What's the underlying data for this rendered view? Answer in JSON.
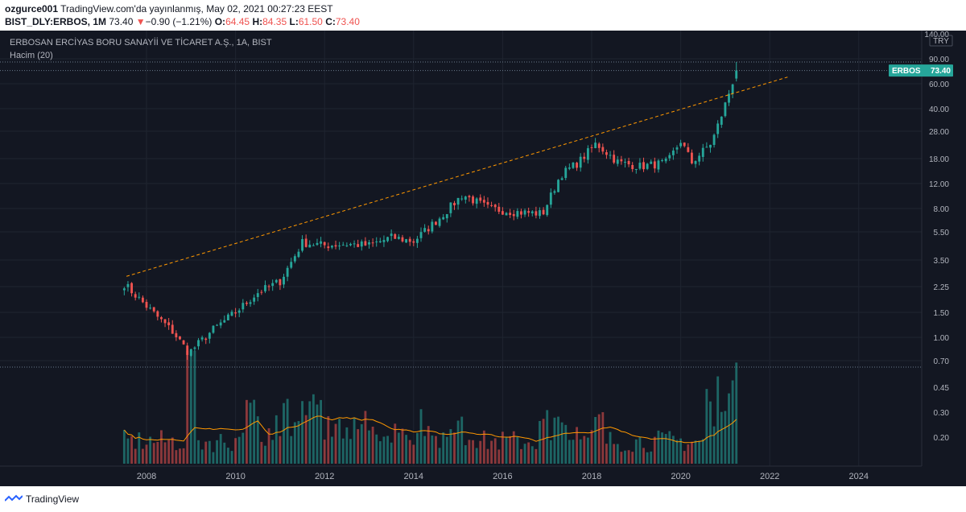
{
  "header": {
    "publisher_line": "ozgurce001 TradingView.com'da yayınlanmış, May 02, 2021 00:27:23 EEST",
    "publisher_name": "ozgurce001",
    "publisher_rest": " TradingView.com'da yayınlanmış, May 02, 2021 00:27:23 EEST",
    "symbol": "BIST_DLY:ERBOS, 1M",
    "last": "73.40",
    "change_arrow": "▼",
    "change": "−0.90 (−1.21%)",
    "o_label": "O:",
    "o_value": "64.45",
    "h_label": "H:",
    "h_value": "84.35",
    "l_label": "L:",
    "l_value": "61.50",
    "c_label": "C:",
    "c_value": "73.40"
  },
  "legend": {
    "title": "ERBOSAN ERCİYAS BORU SANAYİİ VE TİCARET A.Ş., 1A, BIST",
    "volume_label": "Hacim (20)"
  },
  "price_axis": {
    "currency": "TRY",
    "ticks": [
      "140.00",
      "90.00",
      "60.00",
      "40.00",
      "28.00",
      "18.00",
      "12.00",
      "8.00",
      "5.50",
      "3.50",
      "2.25",
      "1.50",
      "1.00",
      "0.70",
      "0.45",
      "0.30",
      "0.20"
    ]
  },
  "price_badge": {
    "symbol": "ERBOS",
    "value": "73.40"
  },
  "colors": {
    "background": "#131722",
    "up": "#26a69a",
    "down": "#ef5350",
    "volume_up": "#26a69a",
    "volume_down": "#ef5350",
    "volume_ma": "#ff9800",
    "trendline": "#ff9800",
    "grid": "#1f2430",
    "text": "#b2b5be"
  },
  "footer": {
    "brand": "TradingView"
  },
  "chart_data": {
    "type": "candlestick",
    "scale": "log",
    "x_ticks": [
      "2008",
      "2010",
      "2012",
      "2014",
      "2016",
      "2018",
      "2020",
      "2022",
      "2024"
    ],
    "x_range": [
      2007.0,
      2025.5
    ],
    "y_range": [
      0.62,
      140
    ],
    "price_anchors": [
      {
        "t": 2007.5,
        "c": 2.3
      },
      {
        "t": 2008.0,
        "c": 1.6
      },
      {
        "t": 2008.6,
        "c": 1.05
      },
      {
        "t": 2008.95,
        "c": 0.75
      },
      {
        "t": 2009.5,
        "c": 1.1
      },
      {
        "t": 2010.0,
        "c": 1.45
      },
      {
        "t": 2010.5,
        "c": 2.0
      },
      {
        "t": 2011.0,
        "c": 2.4
      },
      {
        "t": 2011.5,
        "c": 4.5
      },
      {
        "t": 2012.0,
        "c": 4.3
      },
      {
        "t": 2012.5,
        "c": 4.4
      },
      {
        "t": 2013.0,
        "c": 4.3
      },
      {
        "t": 2013.5,
        "c": 4.9
      },
      {
        "t": 2014.0,
        "c": 4.6
      },
      {
        "t": 2014.6,
        "c": 6.8
      },
      {
        "t": 2015.1,
        "c": 9.8
      },
      {
        "t": 2015.7,
        "c": 7.8
      },
      {
        "t": 2016.3,
        "c": 7.4
      },
      {
        "t": 2016.9,
        "c": 7.2
      },
      {
        "t": 2017.3,
        "c": 13.5
      },
      {
        "t": 2017.7,
        "c": 16.5
      },
      {
        "t": 2018.1,
        "c": 22.5
      },
      {
        "t": 2018.6,
        "c": 16.5
      },
      {
        "t": 2019.1,
        "c": 15.5
      },
      {
        "t": 2019.7,
        "c": 16.5
      },
      {
        "t": 2020.0,
        "c": 23.5
      },
      {
        "t": 2020.25,
        "c": 16.5
      },
      {
        "t": 2020.7,
        "c": 23.0
      },
      {
        "t": 2020.95,
        "c": 38.0
      },
      {
        "t": 2021.25,
        "c": 73.4
      }
    ],
    "last_candle": {
      "o": 64.45,
      "h": 84.35,
      "l": 61.5,
      "c": 73.4
    },
    "trendline": {
      "from": {
        "t": 2007.55,
        "p": 2.6
      },
      "to": {
        "t": 2022.4,
        "p": 66.0
      }
    },
    "volume": {
      "ma_period": 20
    }
  }
}
